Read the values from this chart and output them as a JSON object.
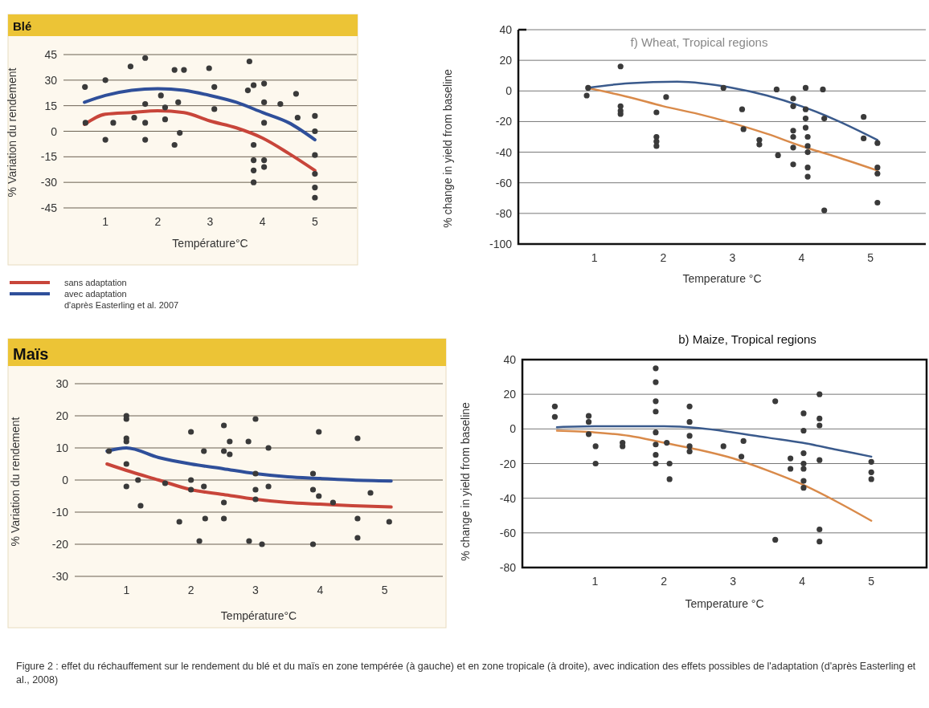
{
  "chart_data": [
    {
      "type": "scatter",
      "title": "Blé",
      "xlabel": "Température°C",
      "ylabel": "% Variation du rendement",
      "xlim": [
        0.2,
        5.8
      ],
      "ylim": [
        -45,
        45
      ],
      "xticks": [
        1,
        2,
        3,
        4,
        5
      ],
      "yticks": [
        45,
        30,
        15,
        0,
        -15,
        -30,
        -45
      ],
      "grid": "y",
      "legend": "bottom",
      "annotations": [
        "d'après Easterling et al. 2007"
      ],
      "series": [
        {
          "color": "#3a3a3a",
          "x": [
            0.61,
            0.62,
            1,
            1,
            1.15,
            1.48,
            1.76,
            1.76,
            1.76,
            1.76,
            1.55,
            2.06,
            2.14,
            2.14,
            2.32,
            2.5,
            2.32,
            2.42,
            2.39,
            2.98,
            3.08,
            3.08,
            3.75,
            3.72,
            3.83,
            4.03,
            4.03,
            4.03,
            4.03,
            4.03,
            3.83,
            3.83,
            3.83,
            3.83,
            4.34,
            4.64,
            4.67,
            5,
            5,
            5,
            5,
            5,
            5
          ],
          "values": [
            26,
            5,
            30,
            -5,
            5,
            38,
            43,
            16,
            5,
            -5,
            8,
            21,
            14,
            7,
            36,
            36,
            -8,
            -1,
            17,
            37,
            26,
            13,
            41,
            24,
            27,
            28,
            17,
            5,
            -17,
            -21,
            -8,
            -17,
            -23,
            -30,
            16,
            22,
            8,
            9,
            0,
            -14,
            -25,
            -33,
            -39
          ]
        },
        {
          "type": "line",
          "name": "sans adaptation",
          "color": "#c8453a",
          "x": [
            0.6,
            1,
            1.5,
            2,
            2.5,
            3,
            3.5,
            4,
            4.5,
            5
          ],
          "values": [
            4,
            10,
            11,
            12,
            11,
            6,
            2,
            -4,
            -13,
            -23
          ]
        },
        {
          "type": "line",
          "name": "avec adaptation",
          "color": "#2f4f9a",
          "x": [
            0.6,
            1,
            1.5,
            2,
            2.5,
            3,
            3.5,
            4,
            4.5,
            5
          ],
          "values": [
            17,
            21,
            24,
            25,
            24,
            21,
            17,
            11,
            5,
            -5
          ]
        }
      ]
    },
    {
      "type": "scatter",
      "title": "f) Wheat, Tropical regions",
      "xlabel": "Temperature °C",
      "ylabel": "% change in yield from baseline",
      "xlim": [
        -0.1,
        5.8
      ],
      "ylim": [
        -100,
        40
      ],
      "xticks": [
        1,
        2,
        3,
        4,
        5
      ],
      "yticks": [
        40,
        20,
        0,
        -20,
        -40,
        -60,
        -80,
        -100
      ],
      "grid": "y",
      "series": [
        {
          "color": "#3a3a3a",
          "x": [
            0.89,
            0.91,
            1.38,
            1.38,
            1.38,
            1.38,
            1.9,
            1.9,
            1.9,
            1.9,
            2.04,
            2.87,
            3.14,
            3.16,
            3.39,
            3.39,
            3.64,
            3.66,
            3.88,
            3.88,
            3.88,
            3.88,
            3.88,
            3.88,
            4.06,
            4.06,
            4.06,
            4.06,
            4.09,
            4.09,
            4.09,
            4.09,
            4.09,
            4.31,
            4.33,
            4.33,
            4.9,
            4.9,
            5.1,
            5.1,
            5.1,
            5.1
          ],
          "values": [
            -3,
            2,
            -10,
            -13,
            -15,
            16,
            -14,
            -30,
            -33,
            -36,
            -4,
            2,
            -12,
            -25,
            -32,
            -35,
            1,
            -42,
            -5,
            -10,
            -26,
            -30,
            -37,
            -48,
            2,
            -12,
            -18,
            -24,
            -30,
            -36,
            -40,
            -50,
            -56,
            1,
            -18,
            -78,
            -17,
            -31,
            -34,
            -50,
            -54,
            -73
          ]
        },
        {
          "type": "line",
          "color": "#d98a4a",
          "x": [
            0.9,
            1.5,
            2,
            2.5,
            3,
            3.5,
            4,
            4.5,
            5.1
          ],
          "values": [
            2,
            -4,
            -10,
            -15,
            -21,
            -28,
            -36,
            -43,
            -52
          ]
        },
        {
          "type": "line",
          "color": "#3a5a8c",
          "x": [
            0.9,
            1.5,
            2.2,
            3,
            3.5,
            4,
            4.5,
            5.1
          ],
          "values": [
            2,
            5,
            6,
            2,
            -3,
            -10,
            -19,
            -32
          ]
        }
      ]
    },
    {
      "type": "scatter",
      "title": "Maïs",
      "xlabel": "Température°C",
      "ylabel": "% Variation du rendement",
      "xlim": [
        0.2,
        5.9
      ],
      "ylim": [
        -30,
        30
      ],
      "xticks": [
        1,
        2,
        3,
        4,
        5
      ],
      "yticks": [
        30,
        20,
        10,
        0,
        -10,
        -20,
        -30
      ],
      "grid": "y",
      "series": [
        {
          "color": "#3a3a3a",
          "x": [
            0.73,
            1,
            1,
            1,
            1,
            1,
            1,
            1.18,
            1.22,
            1.6,
            1.82,
            2,
            2,
            2,
            2.13,
            2.2,
            2.2,
            2.22,
            2.51,
            2.51,
            2.51,
            2.51,
            2.6,
            2.6,
            2.89,
            3,
            3,
            3,
            3,
            2.9,
            3.1,
            3.2,
            3.2,
            3.89,
            3.89,
            3.89,
            3.98,
            3.98,
            4.2,
            4.58,
            4.58,
            4.58,
            4.78,
            5.07
          ],
          "values": [
            9,
            20,
            19,
            13,
            12,
            5,
            -2,
            0,
            -8,
            -1,
            -13,
            15,
            0,
            -3,
            -19,
            9,
            -2,
            -12,
            17,
            9,
            -7,
            -12,
            12,
            8,
            12,
            19,
            2,
            -3,
            -6,
            -19,
            -20,
            10,
            -2,
            2,
            -3,
            -20,
            15,
            -5,
            -7,
            13,
            -12,
            -18,
            -4,
            -13
          ]
        },
        {
          "type": "line",
          "color": "#c8453a",
          "x": [
            0.7,
            1,
            1.5,
            2,
            2.5,
            3,
            3.5,
            4,
            4.5,
            5.1
          ],
          "values": [
            5,
            3,
            0,
            -3,
            -4.5,
            -6,
            -7,
            -7.5,
            -8,
            -8.4
          ]
        },
        {
          "type": "line",
          "color": "#2f4f9a",
          "x": [
            0.7,
            1,
            1.5,
            2,
            2.5,
            3,
            3.5,
            4,
            4.5,
            5.1
          ],
          "values": [
            9,
            10,
            7,
            5,
            3.5,
            2,
            1,
            0.5,
            0,
            -0.3
          ]
        }
      ]
    },
    {
      "type": "scatter",
      "title": "b) Maize, Tropical regions",
      "xlabel": "Temperature °C",
      "ylabel": "% change in yield from baseline",
      "xlim": [
        -0.05,
        5.8
      ],
      "ylim": [
        -80,
        40
      ],
      "xticks": [
        1,
        2,
        3,
        4,
        5
      ],
      "yticks": [
        40,
        20,
        0,
        -20,
        -40,
        -60,
        -80
      ],
      "grid": "y",
      "annotations": [
        "Figure 2 : effet du réchauffement sur le rendement du blé et du maïs en zone tempérée (à gauche) et en zone tropicale (à droite), avec indication des effets possibles de l'adaptation (d'après Easterling et al., 2008)"
      ],
      "series": [
        {
          "color": "#3a3a3a",
          "x": [
            0.42,
            0.42,
            0.91,
            0.91,
            0.91,
            1.01,
            1.01,
            1.4,
            1.4,
            1.88,
            1.88,
            1.88,
            1.88,
            1.88,
            1.88,
            1.88,
            1.88,
            2.04,
            2.08,
            2.08,
            2.37,
            2.37,
            2.37,
            2.37,
            2.37,
            2.86,
            3.15,
            3.12,
            3.61,
            3.61,
            3.83,
            3.83,
            4.02,
            4.02,
            4.02,
            4.02,
            4.02,
            4.02,
            4.02,
            4.25,
            4.25,
            4.25,
            4.25,
            4.25,
            4.25,
            5,
            5,
            5
          ],
          "values": [
            13,
            7,
            7.5,
            4,
            -3,
            -10,
            -20,
            -8,
            -10,
            35,
            27,
            16,
            10,
            -2,
            -9,
            -15,
            -20,
            -8,
            -20,
            -29,
            13,
            4,
            -4,
            -10,
            -13,
            -10,
            -7,
            -16,
            16,
            -64,
            -17,
            -23,
            9,
            -1,
            -14,
            -20,
            -23,
            -30,
            -34,
            20,
            6,
            2,
            -18,
            -58,
            -65,
            -19,
            -25,
            -29
          ]
        },
        {
          "type": "line",
          "color": "#d98a4a",
          "x": [
            0.45,
            1,
            1.5,
            2,
            2.5,
            3,
            3.5,
            4,
            4.5,
            5
          ],
          "values": [
            -1,
            -2,
            -4,
            -8,
            -12,
            -17,
            -24,
            -32,
            -42,
            -53
          ]
        },
        {
          "type": "line",
          "color": "#3a5a8c",
          "x": [
            0.45,
            1,
            2,
            2.5,
            3,
            3.5,
            4,
            4.5,
            5
          ],
          "values": [
            1,
            1.5,
            1.5,
            0.5,
            -2,
            -5,
            -8,
            -12,
            -16
          ]
        }
      ]
    }
  ]
}
